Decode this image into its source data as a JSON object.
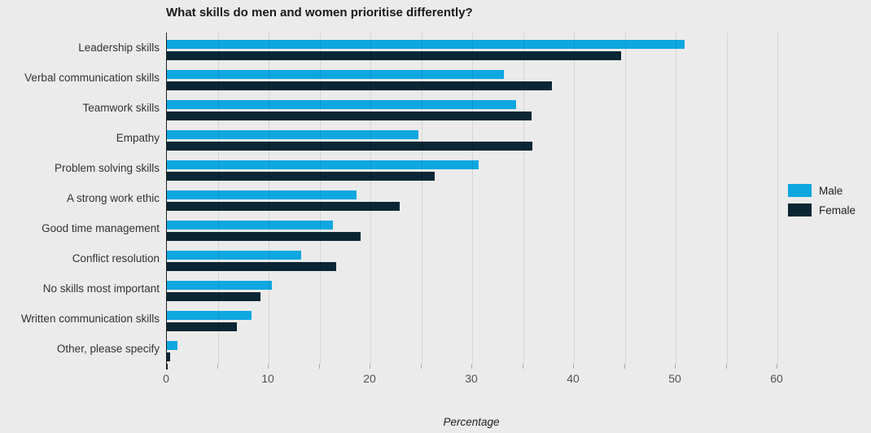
{
  "chart_data": {
    "type": "bar",
    "orientation": "horizontal",
    "title": "What skills do men and women prioritise differently?",
    "xlabel": "Percentage",
    "categories": [
      "Leadership skills",
      "Verbal communication skills",
      "Teamwork skills",
      "Empathy",
      "Problem solving skills",
      "A strong work ethic",
      "Good time management",
      "Conflict resolution",
      "No skills most important",
      "Written communication skills",
      "Other, please specify"
    ],
    "series": [
      {
        "name": "Male",
        "color": "#0ea7e0",
        "values": [
          50.9,
          33.1,
          34.3,
          24.7,
          30.6,
          18.6,
          16.3,
          13.2,
          10.3,
          8.3,
          1.0
        ]
      },
      {
        "name": "Female",
        "color": "#0a2634",
        "values": [
          44.6,
          37.8,
          35.8,
          35.9,
          26.3,
          22.9,
          19.0,
          16.6,
          9.2,
          6.9,
          0.3
        ]
      }
    ],
    "x_axis": {
      "min": 0,
      "max": 67,
      "major_tick_step": 10,
      "minor_tick_step": 5,
      "tick_labels": [
        "0",
        "10",
        "20",
        "30",
        "40",
        "50",
        "60"
      ]
    },
    "grid": "vertical, every 5 units",
    "legend_position": "right"
  },
  "colors": {
    "background": "#ebebeb",
    "gridline": "#d8d8d8",
    "axis_line": "#1f1f1f",
    "label_text": "#333333",
    "tick_text": "#545454",
    "male": "#0ea7e0",
    "female": "#0a2634"
  }
}
